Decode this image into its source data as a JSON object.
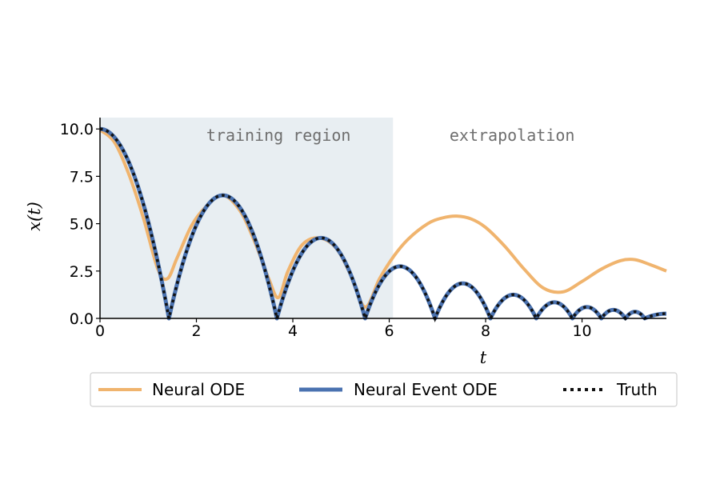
{
  "chart_data": {
    "type": "line",
    "xlabel": "t",
    "ylabel": "x(t)",
    "xlim": [
      0,
      11.75
    ],
    "ylim": [
      0,
      10.6
    ],
    "xticks": [
      0,
      2,
      4,
      6,
      8,
      10
    ],
    "yticks": [
      0.0,
      2.5,
      5.0,
      7.5,
      10.0
    ],
    "xtick_labels": [
      "0",
      "2",
      "4",
      "6",
      "8",
      "10"
    ],
    "ytick_labels": [
      "0.0",
      "2.5",
      "5.0",
      "7.5",
      "10.0"
    ],
    "regions": [
      {
        "label": "training region",
        "x_start": 0,
        "x_end": 6.08,
        "color": "#e8eef2"
      },
      {
        "label": "extrapolation",
        "x_start": 6.08,
        "x_end": 11.75,
        "color": "#ffffff"
      }
    ],
    "legend_position": "bottom-outside",
    "series": [
      {
        "name": "Neural ODE",
        "color": "#f0b46e",
        "style": "solid",
        "x": [
          0,
          0.3,
          0.6,
          0.9,
          1.2,
          1.4,
          1.6,
          1.9,
          2.2,
          2.55,
          2.9,
          3.2,
          3.5,
          3.7,
          3.9,
          4.2,
          4.55,
          4.9,
          5.2,
          5.5,
          5.8,
          6.1,
          6.4,
          6.8,
          7.1,
          7.4,
          7.7,
          8.0,
          8.4,
          8.8,
          9.2,
          9.6,
          10.0,
          10.4,
          10.8,
          11.1,
          11.4,
          11.75
        ],
        "y": [
          9.95,
          9.3,
          7.6,
          5.3,
          2.6,
          2.1,
          3.2,
          4.9,
          5.9,
          6.5,
          5.7,
          4.1,
          2.1,
          1.1,
          2.5,
          3.9,
          4.25,
          3.7,
          2.3,
          0.6,
          2.1,
          3.3,
          4.2,
          5.0,
          5.3,
          5.4,
          5.25,
          4.8,
          3.8,
          2.6,
          1.6,
          1.4,
          1.95,
          2.6,
          3.05,
          3.1,
          2.85,
          2.5
        ]
      },
      {
        "name": "Neural Event ODE",
        "color": "#4a72b0",
        "style": "solid",
        "bounces": [
          {
            "t0": 0,
            "t1": 1.43,
            "peak_t": 0,
            "peak": 10.0
          },
          {
            "t0": 1.43,
            "t1": 3.67,
            "peak_t": 2.55,
            "peak": 6.5
          },
          {
            "t0": 3.67,
            "t1": 5.5,
            "peak_t": 4.585,
            "peak": 4.25
          },
          {
            "t0": 5.5,
            "t1": 6.95,
            "peak_t": 6.225,
            "peak": 2.75
          },
          {
            "t0": 6.95,
            "t1": 8.1,
            "peak_t": 7.525,
            "peak": 1.85
          },
          {
            "t0": 8.1,
            "t1": 9.05,
            "peak_t": 8.575,
            "peak": 1.25
          },
          {
            "t0": 9.05,
            "t1": 9.8,
            "peak_t": 9.425,
            "peak": 0.85
          },
          {
            "t0": 9.8,
            "t1": 10.4,
            "peak_t": 10.1,
            "peak": 0.6
          },
          {
            "t0": 10.4,
            "t1": 10.9,
            "peak_t": 10.65,
            "peak": 0.45
          },
          {
            "t0": 10.9,
            "t1": 11.3,
            "peak_t": 11.1,
            "peak": 0.35
          },
          {
            "t0": 11.3,
            "t1": 11.75,
            "peak_t": 11.75,
            "peak": 0.25
          }
        ]
      },
      {
        "name": "Truth",
        "color": "#111111",
        "style": "dotted",
        "same_as": "Neural Event ODE"
      }
    ]
  }
}
